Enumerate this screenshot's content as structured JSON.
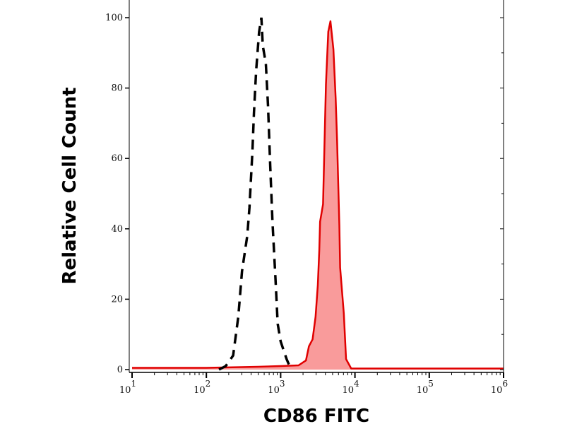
{
  "chart_data": {
    "type": "area",
    "title": "",
    "xlabel": "CD86 FITC",
    "ylabel": "Relative Cell Count",
    "xscale": "log",
    "xlim": [
      10,
      1000000
    ],
    "ylim": [
      0,
      100
    ],
    "xticks": [
      {
        "base": "10",
        "exp": "1"
      },
      {
        "base": "10",
        "exp": "2"
      },
      {
        "base": "10",
        "exp": "3"
      },
      {
        "base": "10",
        "exp": "4"
      },
      {
        "base": "10",
        "exp": "5"
      },
      {
        "base": "10",
        "exp": "6"
      }
    ],
    "yticks": [
      "0",
      "20",
      "40",
      "60",
      "80",
      "100"
    ],
    "grid": false,
    "series": [
      {
        "style": "dashed line",
        "color": "#000000",
        "x": [
          148,
          182,
          229,
          269,
          302,
          355,
          380,
          417,
          437,
          468,
          513,
          550,
          575,
          631,
          676,
          724,
          776,
          851,
          912,
          1000,
          1202,
          1380
        ],
        "y": [
          0,
          1,
          4,
          15,
          28,
          38,
          46,
          62,
          73,
          85,
          96,
          100,
          92,
          87,
          75,
          58,
          42,
          26,
          13,
          8,
          3,
          0
        ]
      },
      {
        "style": "filled",
        "color": "#e00000",
        "fill": "#f99b9b",
        "x": [
          10,
          100,
          500,
          1000,
          1740,
          2190,
          2400,
          2690,
          2950,
          3160,
          3310,
          3390,
          3720,
          4070,
          4370,
          4680,
          5130,
          5500,
          5750,
          6170,
          6310,
          7080,
          7590,
          8910,
          1000000
        ],
        "y": [
          0.5,
          0.5,
          0.8,
          1,
          1.2,
          2.6,
          6.6,
          8.6,
          15,
          24,
          34,
          42,
          47,
          81,
          96,
          99,
          91,
          77,
          65,
          41,
          29,
          16,
          3,
          0.3,
          0.3
        ]
      }
    ]
  }
}
